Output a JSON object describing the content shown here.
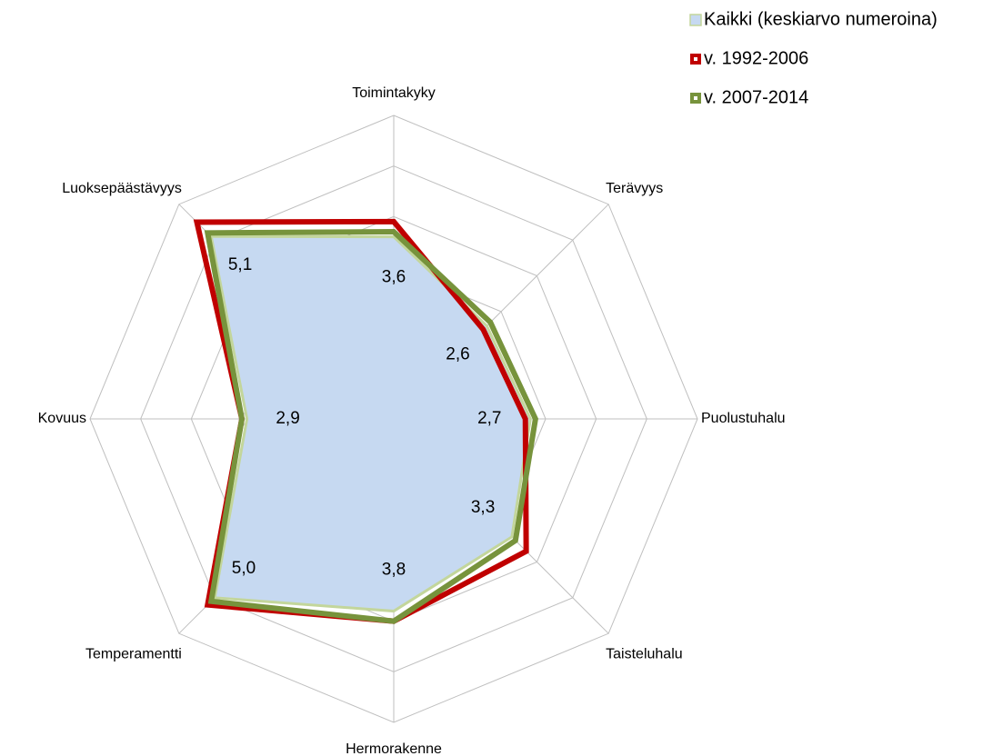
{
  "chart_data": {
    "type": "radar",
    "categories": [
      "Toimintakyky",
      "Terävyys",
      "Puolustuhalu",
      "Taisteluhalu",
      "Hermorakenne",
      "Temperamentti",
      "Kovuus",
      "Luoksepäästävyys"
    ],
    "series": [
      {
        "name": "Kaikki (keskiarvo numeroina)",
        "color": "#c6d9f1",
        "stroke": "#c3d69b",
        "values": [
          3.6,
          2.6,
          2.7,
          3.3,
          3.8,
          5.0,
          2.9,
          5.1
        ],
        "value_labels": [
          "3,6",
          "2,6",
          "2,7",
          "3,3",
          "3,8",
          "5,0",
          "2,9",
          "5,1"
        ]
      },
      {
        "name": "v. 1992-2006",
        "color": "#c00000",
        "values": [
          3.9,
          2.5,
          2.6,
          3.7,
          4.0,
          5.2,
          3.0,
          5.5
        ]
      },
      {
        "name": "v. 2007-2014",
        "color": "#77933c",
        "values": [
          3.7,
          2.7,
          2.8,
          3.4,
          4.0,
          5.1,
          3.0,
          5.2
        ]
      }
    ],
    "rlim": [
      0,
      6
    ],
    "rticks": [
      0,
      1,
      2,
      3,
      4,
      5,
      6
    ],
    "grid": true,
    "legend": "top-right"
  }
}
